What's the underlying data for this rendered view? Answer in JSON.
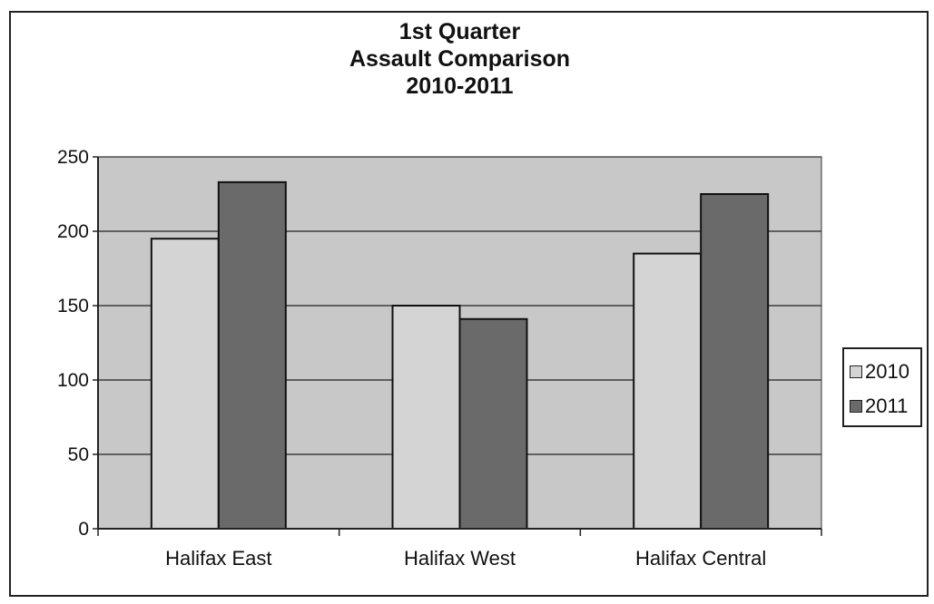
{
  "chart_data": {
    "type": "bar",
    "title_lines": [
      "1st Quarter",
      "Assault Comparison",
      "2010-2011"
    ],
    "categories": [
      "Halifax East",
      "Halifax West",
      "Halifax Central"
    ],
    "series": [
      {
        "name": "2010",
        "values": [
          195,
          150,
          185
        ],
        "color": "#d4d4d4"
      },
      {
        "name": "2011",
        "values": [
          233,
          141,
          225
        ],
        "color": "#6a6a6a"
      }
    ],
    "ylim": [
      0,
      250
    ],
    "yticks": [
      "0",
      "50",
      "100",
      "150",
      "200",
      "250"
    ],
    "grid": true,
    "legend": "right",
    "plot_background": "#c8c8c8"
  }
}
